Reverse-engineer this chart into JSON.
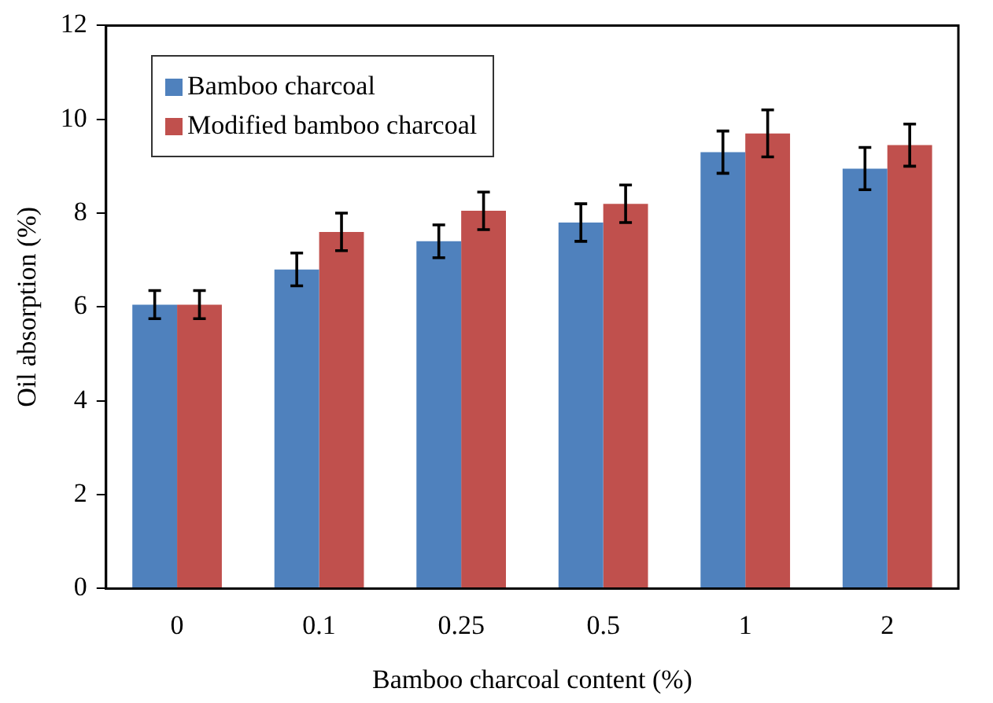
{
  "chart_data": {
    "type": "bar",
    "xlabel": "Bamboo charcoal content (%)",
    "ylabel": "Oil absorption (%)",
    "categories": [
      "0",
      "0.1",
      "0.25",
      "0.5",
      "1",
      "2"
    ],
    "series": [
      {
        "name": "Bamboo charcoal",
        "color": "#4f81bd",
        "values": [
          6.05,
          6.8,
          7.4,
          7.8,
          9.3,
          8.95
        ],
        "errors": [
          0.3,
          0.35,
          0.35,
          0.4,
          0.45,
          0.45
        ]
      },
      {
        "name": "Modified bamboo charcoal",
        "color": "#c0504d",
        "values": [
          6.05,
          7.6,
          8.05,
          8.2,
          9.7,
          9.45
        ],
        "errors": [
          0.3,
          0.4,
          0.4,
          0.4,
          0.5,
          0.45
        ]
      }
    ],
    "ylim": [
      0,
      12
    ],
    "yticks": [
      0,
      2,
      4,
      6,
      8,
      10,
      12
    ],
    "grid": false,
    "legend": "top left"
  }
}
